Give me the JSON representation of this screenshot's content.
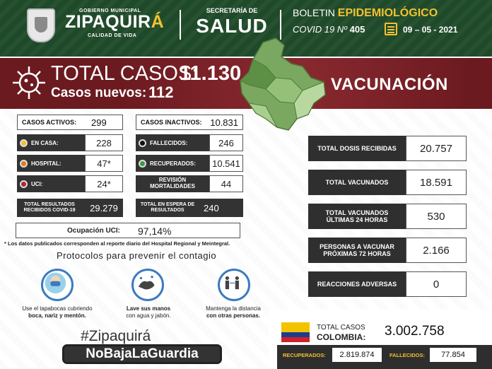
{
  "header": {
    "gobierno": "GOBIERNO MUNICIPAL",
    "city_main": "ZIPAQUIR",
    "city_accent": "Á",
    "calidad": "CALIDAD DE VIDA",
    "secretaria": "SECRETARÍA DE",
    "salud": "SALUD",
    "boletin_prefix": "BOLETIN",
    "boletin_highlight": "EPIDEMIOLÓGICO",
    "covid_label": "COVID 19 Nº",
    "covid_number": "405",
    "date": "09 – 05 - 2021"
  },
  "banner": {
    "total_label": "TOTAL CASOS:",
    "total_value": "11.130",
    "nuevos_label": "Casos nuevos:",
    "nuevos_value": "112",
    "vacunacion": "VACUNACIÓN"
  },
  "casos": {
    "activos_label": "CASOS ACTIVOS:",
    "activos_value": "299",
    "inactivos_label": "CASOS INACTIVOS:",
    "inactivos_value": "10.831",
    "en_casa_label": "EN CASA:",
    "en_casa_value": "228",
    "hospital_label": "HOSPITAL:",
    "hospital_value": "47*",
    "uci_label": "UCI:",
    "uci_value": "24*",
    "fallecidos_label": "FALLECIDOS:",
    "fallecidos_value": "246",
    "recuperados_label": "RECUPERADOS:",
    "recuperados_value": "10.541",
    "revision_label": "REVISIÓN MORTALIDADES",
    "revision_value": "44",
    "resultados_label": "TOTAL RESULTADOS RECIBIDOS COVID-19",
    "resultados_value": "29.279",
    "espera_label": "TOTAL EN ESPERA DE RESULTADOS",
    "espera_value": "240",
    "ocupacion_label": "Ocupación UCI:",
    "ocupacion_value": "97,14%",
    "note": "* Los datos publicados corresponden al reporte diario del Hospital Regional y Meintegral."
  },
  "colors": {
    "en_casa": "#f2c230",
    "hospital": "#e07b22",
    "uci": "#b3262e",
    "fallecidos": "#111111",
    "recuperados": "#3a9b3e"
  },
  "protocolos": {
    "title": "Protocolos para prevenir el contagio",
    "items": [
      {
        "icon": "face-mask-icon",
        "line1": "Use el tapabocas cubriendo",
        "line2": "boca, nariz y mentón."
      },
      {
        "icon": "hand-wash-icon",
        "line1": "Lave sus manos",
        "line2": "con agua y jabón."
      },
      {
        "icon": "social-distance-icon",
        "line1": "Mantenga la distancia",
        "line2": "con otras personas."
      }
    ]
  },
  "campaign": {
    "hashtag": "#Zipaquirá",
    "slogan": "NoBajaLaGuardia"
  },
  "vacunacion": [
    {
      "label": "TOTAL DOSIS RECIBIDAS",
      "value": "20.757"
    },
    {
      "label": "TOTAL VACUNADOS",
      "value": "18.591"
    },
    {
      "label": "TOTAL VACUNADOS ÚLTIMAS 24 HORAS",
      "value": "530"
    },
    {
      "label": "PERSONAS A VACUNAR PRÓXIMAS 72 HORAS",
      "value": "2.166"
    },
    {
      "label": "REACCIONES ADVERSAS",
      "value": "0"
    }
  ],
  "colombia": {
    "label_line1": "TOTAL CASOS",
    "label_line2": "COLOMBIA:",
    "total": "3.002.758",
    "recuperados_label": "RECUPERADOS:",
    "recuperados_value": "2.819.874",
    "fallecidos_label": "FALLECIDOS:",
    "fallecidos_value": "77.854"
  }
}
